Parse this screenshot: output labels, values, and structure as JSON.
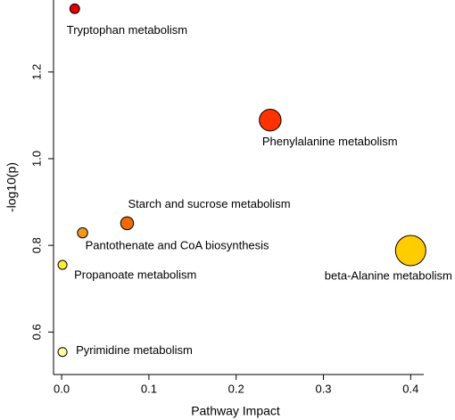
{
  "chart_data": {
    "type": "scatter",
    "x_label": "Pathway Impact",
    "y_label": "-log10(p)",
    "point_labels": [
      "Tryptophan metabolism",
      "Phenylalanine metabolism",
      "Starch and sucrose metabolism",
      "Pantothenate and CoA biosynthesis",
      "beta-Alanine metabolism",
      "Propanoate metabolism",
      "Pyrimidine metabolism"
    ],
    "x": [
      0.015,
      0.239,
      0.075,
      0.024,
      0.4,
      0.001,
      0.001
    ],
    "y": [
      1.346,
      1.089,
      0.851,
      0.829,
      0.788,
      0.755,
      0.554
    ],
    "colors": [
      "#e60000",
      "#ff3300",
      "#f06a00",
      "#f39a1e",
      "#ffcc00",
      "#fff033",
      "#ffff9e"
    ],
    "xlim": [
      -0.0093,
      0.415
    ],
    "ylim": [
      0.502,
      1.362
    ],
    "xticks": [
      {
        "value": 0,
        "label": "0.0"
      },
      0.1,
      0.2,
      0.3,
      0.4
    ],
    "yticks": [
      0.6,
      0.8,
      {
        "value": 1,
        "label": "1.0"
      },
      1.2
    ]
  }
}
